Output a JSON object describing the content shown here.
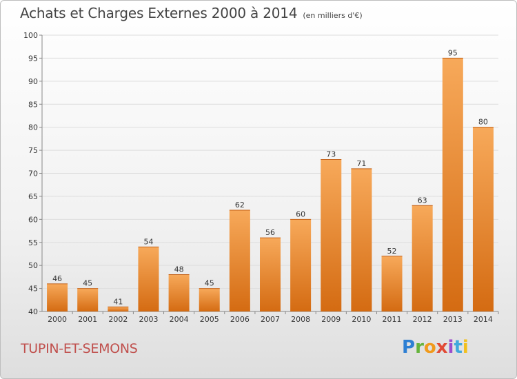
{
  "header": {
    "title": "Achats et Charges Externes 2000 à 2014",
    "subtitle": "(en milliers d'€)"
  },
  "footer": {
    "commune": "TUPIN-ET-SEMONS",
    "brand": "Proxiti"
  },
  "colors": {
    "bar_top": "#f7a95a",
    "bar_bottom": "#d46b12",
    "grid": "#dddddd",
    "commune_text": "#c0504d"
  },
  "chart_data": {
    "type": "bar",
    "categories": [
      "2000",
      "2001",
      "2002",
      "2003",
      "2004",
      "2005",
      "2006",
      "2007",
      "2008",
      "2009",
      "2010",
      "2011",
      "2012",
      "2013",
      "2014"
    ],
    "values": [
      46,
      45,
      41,
      54,
      48,
      45,
      62,
      56,
      60,
      73,
      71,
      52,
      63,
      95,
      80
    ],
    "ylim": [
      40,
      100
    ],
    "yticks": [
      40,
      45,
      50,
      55,
      60,
      65,
      70,
      75,
      80,
      85,
      90,
      95,
      100
    ],
    "grid": true,
    "data_labels": true
  }
}
